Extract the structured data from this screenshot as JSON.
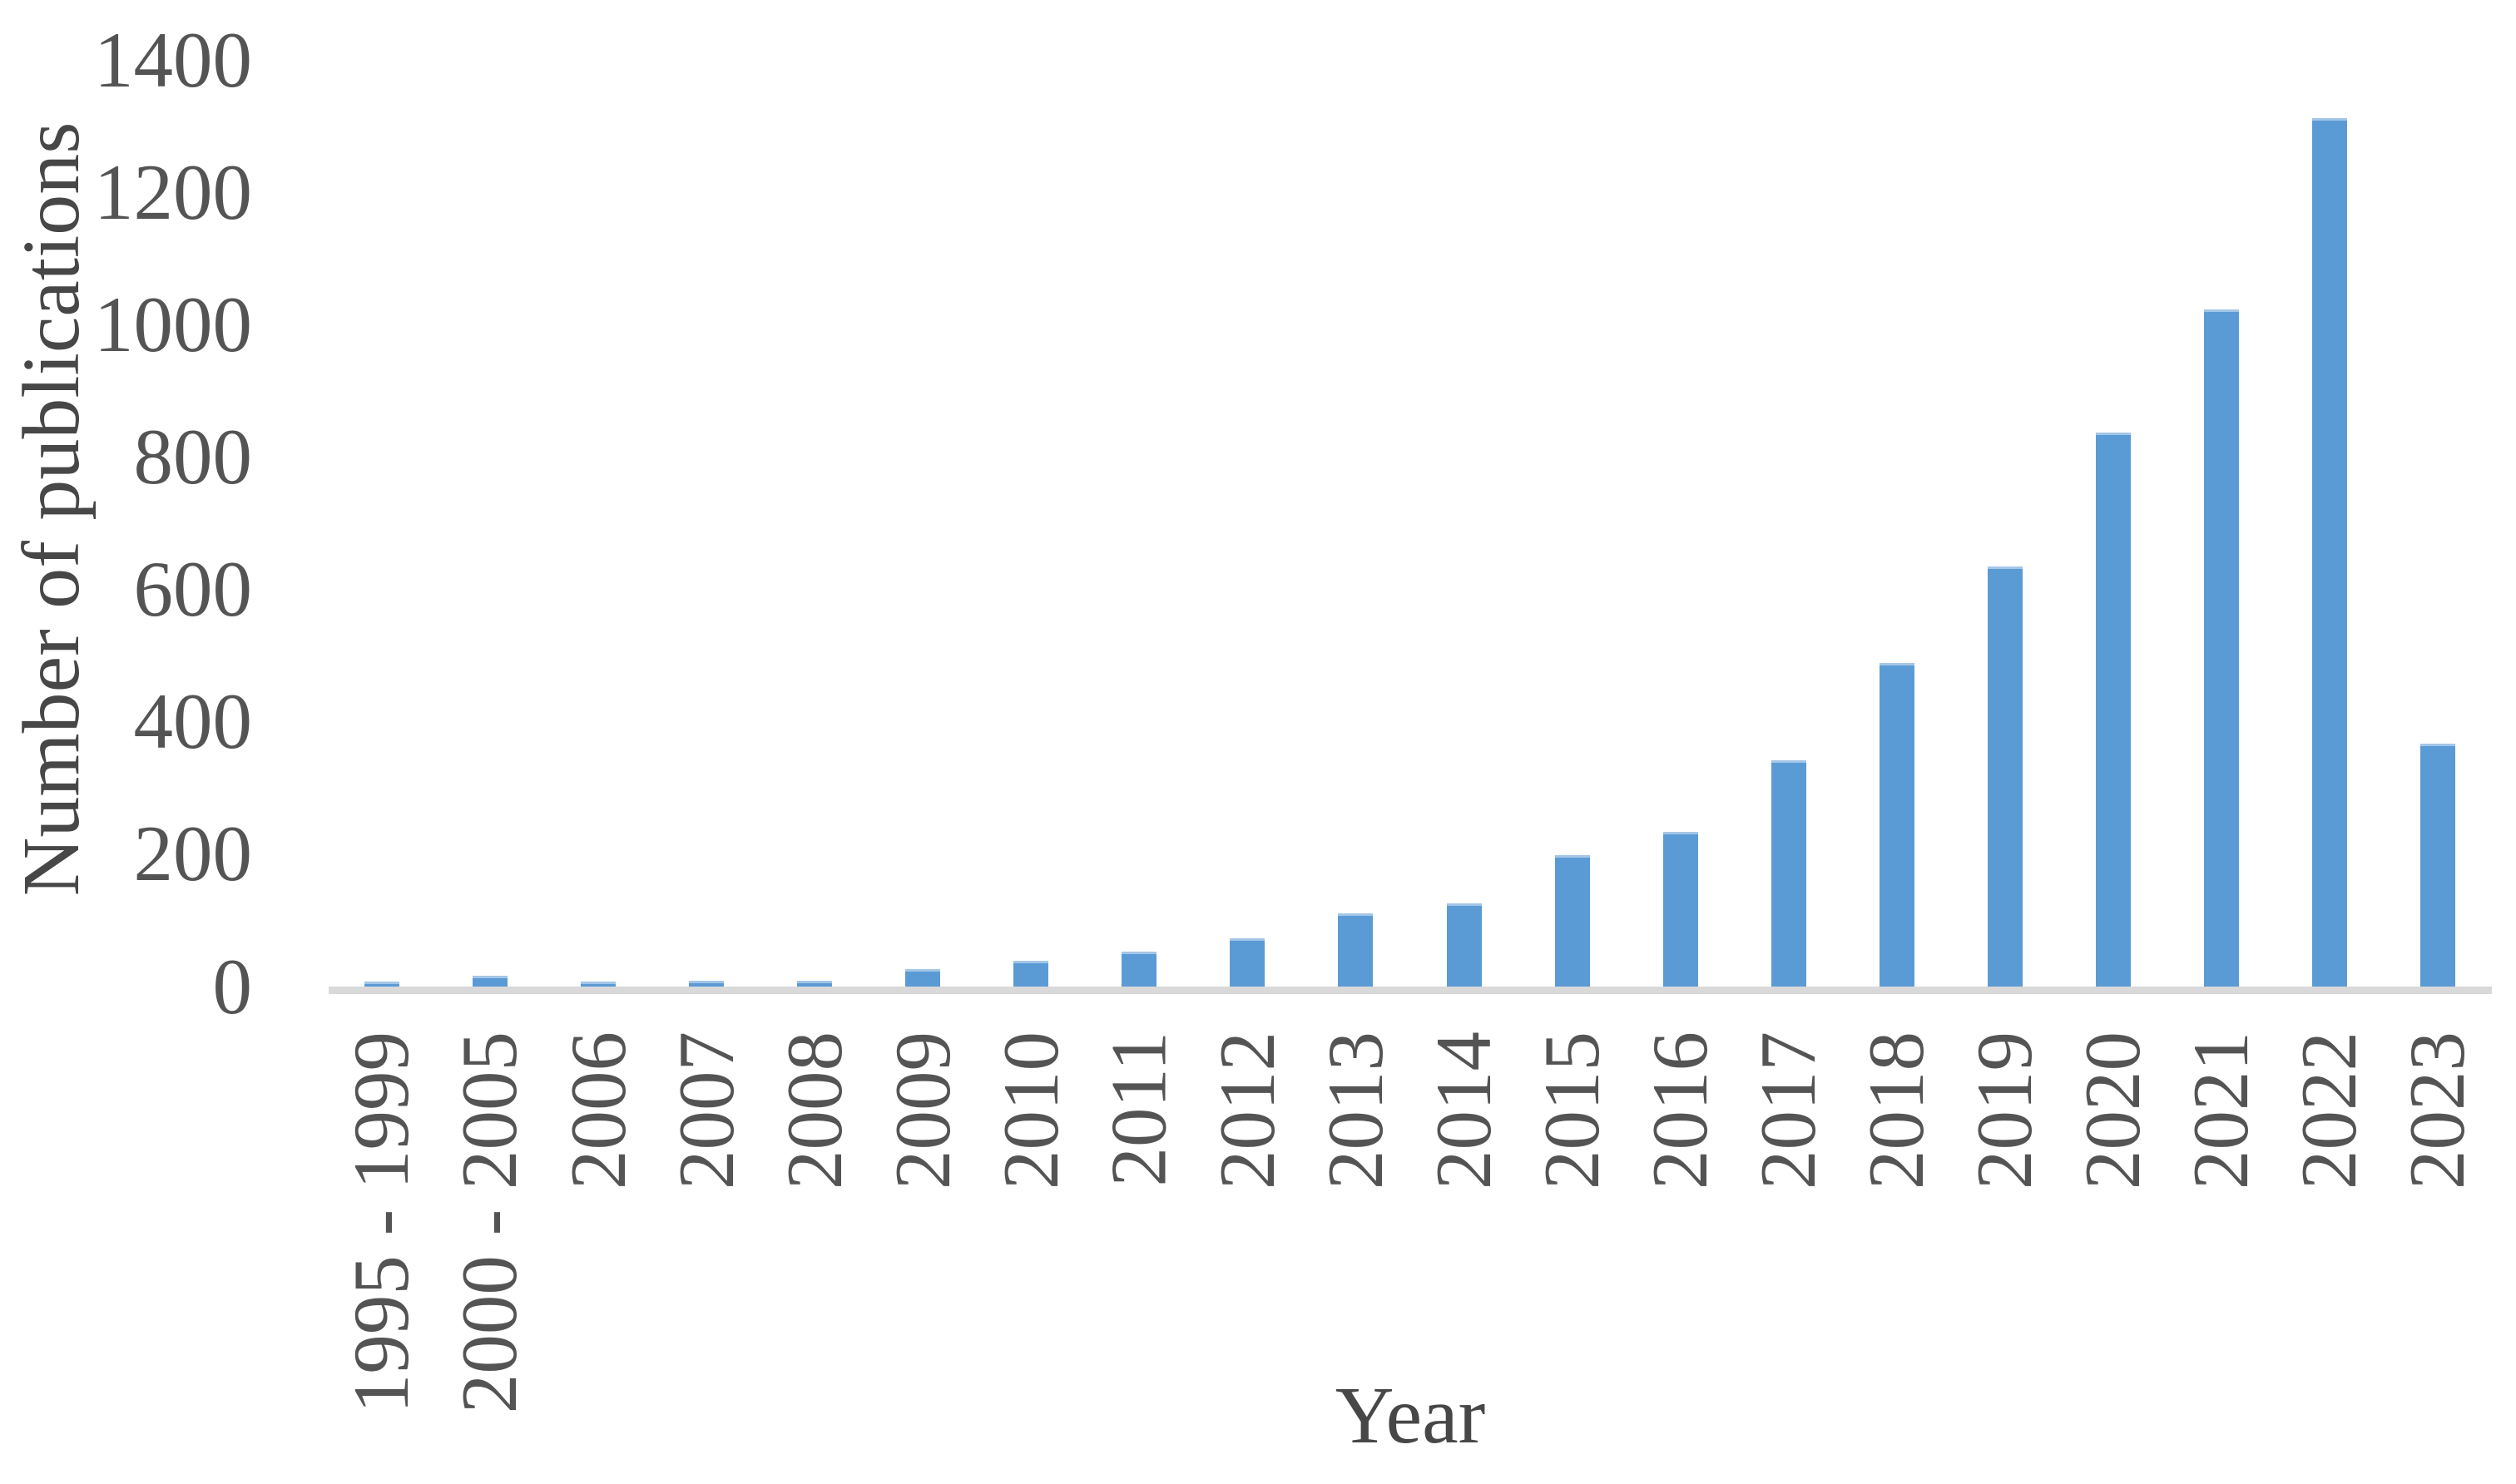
{
  "chart_data": {
    "type": "bar",
    "title": "",
    "xlabel": "Year",
    "ylabel": "Number of publications",
    "categories": [
      "1995 - 1999",
      "2000 - 2005",
      "2006",
      "2007",
      "2008",
      "2009",
      "2010",
      "2011",
      "2012",
      "2013",
      "2014",
      "2015",
      "2016",
      "2017",
      "2018",
      "2019",
      "2020",
      "2021",
      "2022",
      "2023"
    ],
    "values": [
      8,
      16,
      8,
      9,
      9,
      26,
      39,
      53,
      73,
      111,
      126,
      199,
      234,
      342,
      489,
      635,
      837,
      1023,
      1312,
      367
    ],
    "y_ticks": [
      0,
      200,
      400,
      600,
      800,
      1000,
      1200,
      1400
    ],
    "ylim": [
      0,
      1400
    ],
    "grid": "off",
    "legend_position": "none",
    "bar_color": "#5B9BD5",
    "bar_top_edge_color": "#A3C6E8",
    "axis_line_color": "#D9D9D9",
    "tick_label_color": "#545454",
    "axis_title_color": "#474747"
  }
}
